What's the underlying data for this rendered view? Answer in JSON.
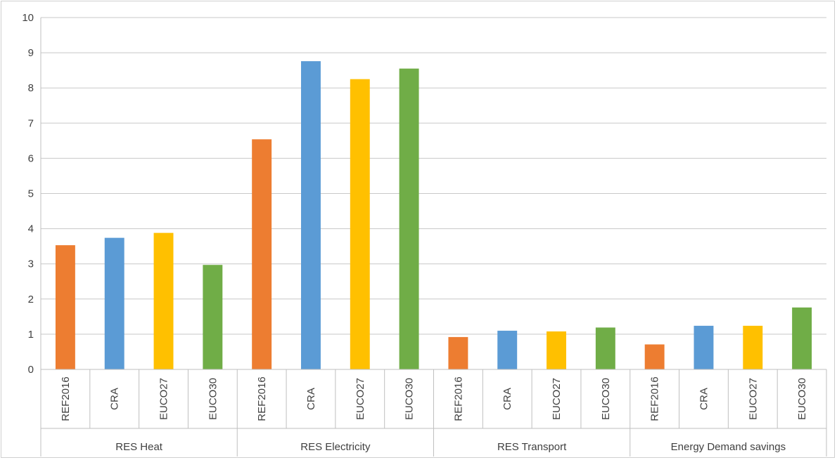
{
  "chart_data": {
    "type": "bar",
    "title": "",
    "xlabel": "",
    "ylabel": "",
    "ylim": [
      0,
      10
    ],
    "yticks": [
      0,
      1,
      2,
      3,
      4,
      5,
      6,
      7,
      8,
      9,
      10
    ],
    "grid": true,
    "legend": "none",
    "groups": [
      {
        "label": "RES Heat",
        "bars": [
          {
            "label": "REF2016",
            "value": 3.53,
            "color": "#ED7D31"
          },
          {
            "label": "CRA",
            "value": 3.74,
            "color": "#5B9BD5"
          },
          {
            "label": "EUCO27",
            "value": 3.88,
            "color": "#FFC000"
          },
          {
            "label": "EUCO30",
            "value": 2.97,
            "color": "#70AD47"
          }
        ]
      },
      {
        "label": "RES Electricity",
        "bars": [
          {
            "label": "REF2016",
            "value": 6.54,
            "color": "#ED7D31"
          },
          {
            "label": "CRA",
            "value": 8.76,
            "color": "#5B9BD5"
          },
          {
            "label": "EUCO27",
            "value": 8.25,
            "color": "#FFC000"
          },
          {
            "label": "EUCO30",
            "value": 8.55,
            "color": "#70AD47"
          }
        ]
      },
      {
        "label": "RES Transport",
        "bars": [
          {
            "label": "REF2016",
            "value": 0.92,
            "color": "#ED7D31"
          },
          {
            "label": "CRA",
            "value": 1.1,
            "color": "#5B9BD5"
          },
          {
            "label": "EUCO27",
            "value": 1.08,
            "color": "#FFC000"
          },
          {
            "label": "EUCO30",
            "value": 1.19,
            "color": "#70AD47"
          }
        ]
      },
      {
        "label": "Energy Demand savings",
        "bars": [
          {
            "label": "REF2016",
            "value": 0.71,
            "color": "#ED7D31"
          },
          {
            "label": "CRA",
            "value": 1.24,
            "color": "#5B9BD5"
          },
          {
            "label": "EUCO27",
            "value": 1.24,
            "color": "#FFC000"
          },
          {
            "label": "EUCO30",
            "value": 1.76,
            "color": "#70AD47"
          }
        ]
      }
    ]
  }
}
